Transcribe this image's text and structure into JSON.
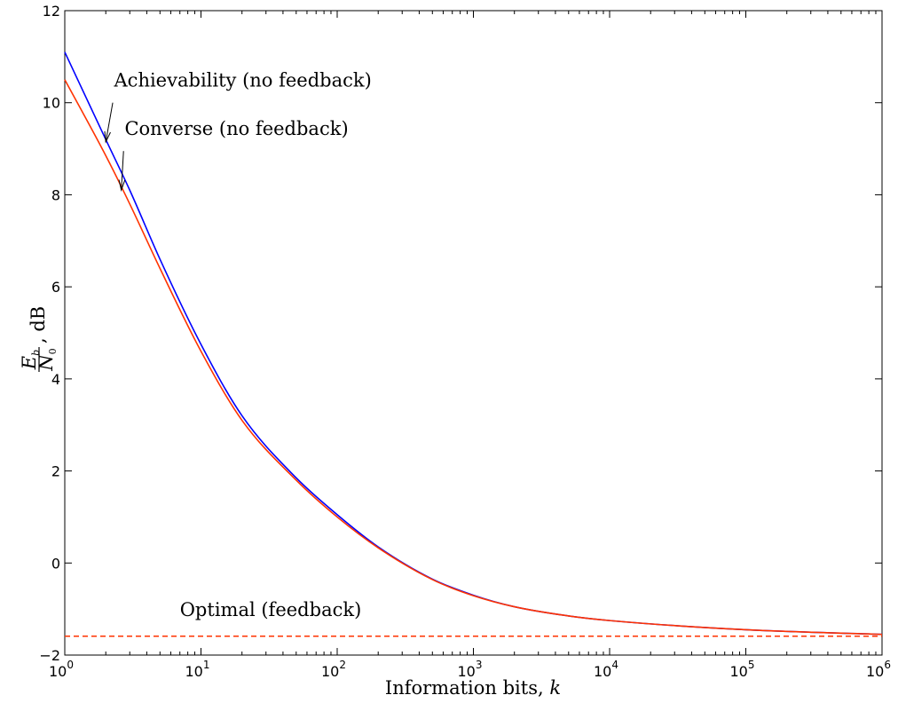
{
  "chart_data": {
    "type": "line",
    "x_scale": "log",
    "xlim": [
      1,
      1000000
    ],
    "ylim": [
      -2,
      12
    ],
    "grid": false,
    "xlabel_text": "Information bits, ",
    "xlabel_var": "k",
    "ylabel_frac_num": "E",
    "ylabel_frac_num_sub": "b",
    "ylabel_frac_den": "N",
    "ylabel_frac_den_sub": "0",
    "ylabel_suffix": ", dB",
    "x_ticks": [
      {
        "base": "10",
        "exp": "0",
        "value": 1
      },
      {
        "base": "10",
        "exp": "1",
        "value": 10
      },
      {
        "base": "10",
        "exp": "2",
        "value": 100
      },
      {
        "base": "10",
        "exp": "3",
        "value": 1000
      },
      {
        "base": "10",
        "exp": "4",
        "value": 10000
      },
      {
        "base": "10",
        "exp": "5",
        "value": 100000
      },
      {
        "base": "10",
        "exp": "6",
        "value": 1000000
      }
    ],
    "y_ticks": [
      {
        "label": "12",
        "value": 12
      },
      {
        "label": "10",
        "value": 10
      },
      {
        "label": "8",
        "value": 8
      },
      {
        "label": "6",
        "value": 6
      },
      {
        "label": "4",
        "value": 4
      },
      {
        "label": "2",
        "value": 2
      },
      {
        "label": "0",
        "value": 0
      },
      {
        "label": "−2",
        "value": -2
      }
    ],
    "series": [
      {
        "name": "Achievability (no feedback)",
        "color": "#0000ff",
        "style": "solid",
        "x": [
          1,
          2,
          3,
          5,
          10,
          20,
          50,
          100,
          200,
          500,
          1000,
          2000,
          5000,
          10000,
          100000,
          1000000
        ],
        "y": [
          11.1,
          9.2,
          8.1,
          6.6,
          4.75,
          3.2,
          1.85,
          1.05,
          0.35,
          -0.35,
          -0.7,
          -0.95,
          -1.15,
          -1.25,
          -1.45,
          -1.55
        ]
      },
      {
        "name": "Converse (no feedback)",
        "color": "#ff3300",
        "style": "solid",
        "x": [
          1,
          2,
          3,
          5,
          10,
          20,
          50,
          100,
          200,
          500,
          1000,
          2000,
          5000,
          10000,
          100000,
          1000000
        ],
        "y": [
          10.5,
          8.85,
          7.8,
          6.4,
          4.6,
          3.1,
          1.8,
          1.0,
          0.33,
          -0.36,
          -0.71,
          -0.95,
          -1.15,
          -1.25,
          -1.45,
          -1.55
        ]
      },
      {
        "name": "Optimal (feedback)",
        "color": "#ff3300",
        "style": "dashed",
        "x": [
          1,
          1000000
        ],
        "y": [
          -1.59,
          -1.59
        ]
      }
    ],
    "annotations": [
      {
        "text": "Achievability (no feedback)",
        "text_x": 2.3,
        "text_y": 10.35,
        "arrow_from_x": 2.25,
        "arrow_from_y": 10.0,
        "arrow_to_x": 2.0,
        "arrow_to_y": 9.15
      },
      {
        "text": "Converse (no feedback)",
        "text_x": 2.75,
        "text_y": 9.3,
        "arrow_from_x": 2.7,
        "arrow_from_y": 8.95,
        "arrow_to_x": 2.6,
        "arrow_to_y": 8.1
      },
      {
        "text": "Optimal (feedback)",
        "text_x": 7.0,
        "text_y": -1.15
      }
    ]
  }
}
